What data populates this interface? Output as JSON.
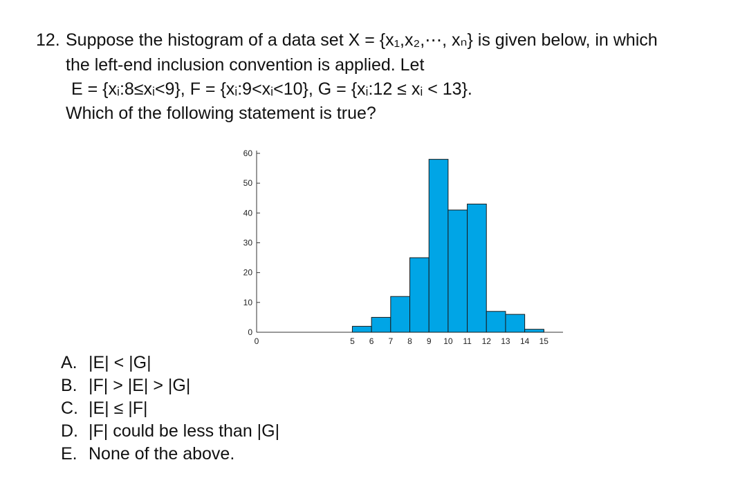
{
  "question": {
    "number": "12.",
    "lines": [
      "Suppose the histogram of a data set X = {x₁,x₂,⋯, xₙ} is given below, in which",
      "the left-end inclusion convention is applied.  Let",
      "E = {xᵢ:8≤xᵢ<9}, F = {xᵢ:9<xᵢ<10}, G = {xᵢ:12 ≤ xᵢ < 13}.",
      "Which of the following statement is true?"
    ]
  },
  "chart_data": {
    "type": "histogram",
    "bins": [
      5,
      6,
      7,
      8,
      9,
      10,
      11,
      12,
      13,
      14,
      15
    ],
    "values": [
      2,
      5,
      12,
      25,
      58,
      41,
      43,
      7,
      6,
      1
    ],
    "color": "#00a5e6",
    "xlim": [
      0,
      16
    ],
    "xticks": [
      0,
      5,
      6,
      7,
      8,
      9,
      10,
      11,
      12,
      13,
      14,
      15
    ],
    "ylim": [
      0,
      60
    ],
    "yticks": [
      0,
      10,
      20,
      30,
      40,
      50,
      60
    ]
  },
  "options": [
    {
      "letter": "A.",
      "text": "|E| < |G|"
    },
    {
      "letter": "B.",
      "text": "|F| > |E| > |G|"
    },
    {
      "letter": "C.",
      "text": "|E| ≤ |F|"
    },
    {
      "letter": "D.",
      "text": "|F| could be less than |G|"
    },
    {
      "letter": "E.",
      "text": "None of the above."
    }
  ]
}
